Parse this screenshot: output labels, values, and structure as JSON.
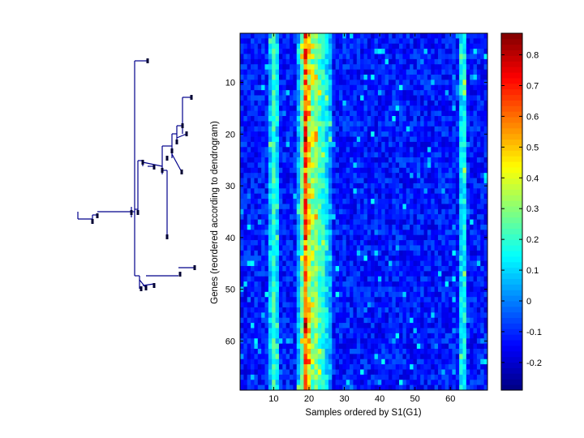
{
  "chart_data": [
    {
      "type": "dendrogram",
      "orientation": "root-left",
      "leaf_count": 69,
      "description_terms": "hierarchical clustering tree of genes",
      "line_color": "#00008b"
    },
    {
      "type": "heatmap",
      "xlabel": "Samples ordered by S1(G1)",
      "ylabel": "Genes (reordered according to dendrogram)",
      "n_samples": 70,
      "n_genes": 69,
      "xlim": [
        0.5,
        70.5
      ],
      "ylim": [
        0.5,
        69.5
      ],
      "xticks": [
        10,
        20,
        30,
        40,
        50,
        60
      ],
      "yticks": [
        10,
        20,
        30,
        40,
        50,
        60
      ],
      "colormap": "jet",
      "value_range": [
        -0.29,
        0.87
      ],
      "baseline_value": -0.12,
      "noise_amplitude": 0.08,
      "column_profile": [
        {
          "sample": 9,
          "mean": 0.08
        },
        {
          "sample": 10,
          "mean": 0.2
        },
        {
          "sample": 11,
          "mean": 0.1
        },
        {
          "sample": 17,
          "mean": 0.05
        },
        {
          "sample": 18,
          "mean": 0.25
        },
        {
          "sample": 19,
          "mean": 0.62
        },
        {
          "sample": 20,
          "mean": 0.42
        },
        {
          "sample": 21,
          "mean": 0.33
        },
        {
          "sample": 22,
          "mean": 0.3
        },
        {
          "sample": 23,
          "mean": 0.22
        },
        {
          "sample": 24,
          "mean": 0.18
        },
        {
          "sample": 25,
          "mean": 0.12
        },
        {
          "sample": 26,
          "mean": 0.04
        },
        {
          "sample": 63,
          "mean": 0.12
        },
        {
          "sample": 64,
          "mean": 0.14
        }
      ]
    },
    {
      "type": "colorbar",
      "ticks": [
        -0.2,
        -0.1,
        0,
        0.1,
        0.2,
        0.3,
        0.4,
        0.5,
        0.6,
        0.7,
        0.8
      ],
      "tick_labels": [
        "-0.2",
        "-0.1",
        "0",
        "0.1",
        "0.2",
        "0.3",
        "0.4",
        "0.5",
        "0.6",
        "0.7",
        "0.8"
      ],
      "range": [
        -0.29,
        0.87
      ]
    }
  ]
}
